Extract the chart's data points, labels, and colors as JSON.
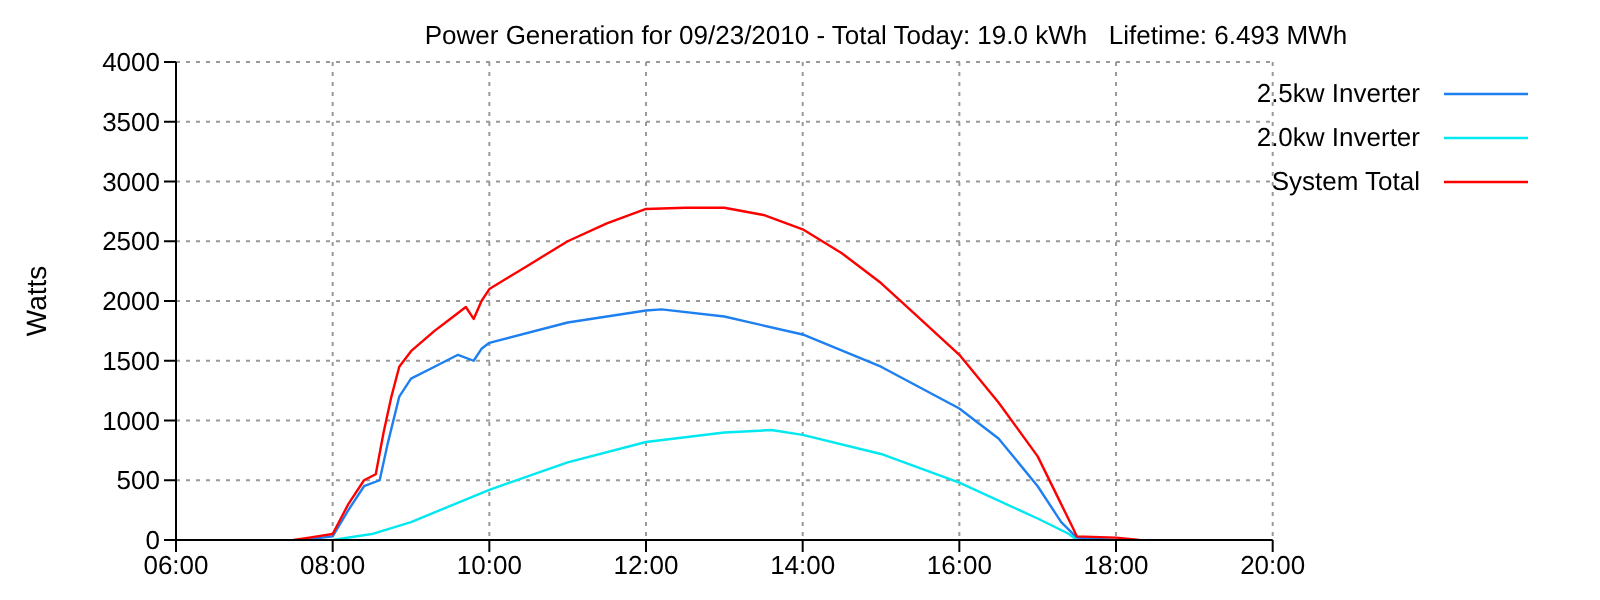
{
  "chart_data": {
    "type": "line",
    "title": "Power Generation for 09/23/2010 - Total Today: 19.0 kWh   Lifetime: 6.493 MWh",
    "ylabel": "Watts",
    "xlim": [
      6,
      20
    ],
    "xticks": [
      {
        "value": 6,
        "label": "06:00"
      },
      {
        "value": 8,
        "label": "08:00"
      },
      {
        "value": 10,
        "label": "10:00"
      },
      {
        "value": 12,
        "label": "12:00"
      },
      {
        "value": 14,
        "label": "14:00"
      },
      {
        "value": 16,
        "label": "16:00"
      },
      {
        "value": 18,
        "label": "18:00"
      },
      {
        "value": 20,
        "label": "20:00"
      }
    ],
    "ylim": [
      0,
      4000
    ],
    "yticks": [
      0,
      500,
      1000,
      1500,
      2000,
      2500,
      3000,
      3500,
      4000
    ],
    "grid": true,
    "legend": "top right",
    "marker": "none",
    "line_style": "solid",
    "series": [
      {
        "name": "2.5kw Inverter",
        "color": "#1e80f0",
        "x": [
          7.6,
          8.0,
          8.2,
          8.4,
          8.6,
          8.7,
          8.85,
          9.0,
          9.3,
          9.6,
          9.8,
          9.9,
          10,
          11,
          12,
          12.2,
          13,
          14,
          15,
          16,
          16.5,
          17,
          17.3,
          17.5,
          18
        ],
        "values": [
          0,
          30,
          250,
          450,
          500,
          800,
          1200,
          1350,
          1450,
          1550,
          1500,
          1600,
          1650,
          1820,
          1920,
          1930,
          1870,
          1720,
          1450,
          1100,
          850,
          450,
          150,
          20,
          0
        ]
      },
      {
        "name": "2.0kw Inverter",
        "color": "#00e8f0",
        "x": [
          8.0,
          8.5,
          9,
          10,
          11,
          12,
          13,
          13.6,
          14,
          15,
          16,
          17,
          17.4,
          17.5
        ],
        "values": [
          0,
          50,
          150,
          420,
          650,
          820,
          900,
          920,
          880,
          720,
          480,
          180,
          50,
          0
        ]
      },
      {
        "name": "System Total",
        "color": "#ff0000",
        "x": [
          7.5,
          7.7,
          8.0,
          8.2,
          8.4,
          8.55,
          8.65,
          8.75,
          8.85,
          9.0,
          9.3,
          9.5,
          9.7,
          9.8,
          9.9,
          10,
          10.5,
          11,
          11.5,
          12,
          12.5,
          13,
          13.5,
          14,
          14.5,
          15,
          15.5,
          16,
          16.5,
          17,
          17.3,
          17.45,
          17.5,
          18,
          18.3
        ],
        "values": [
          0,
          20,
          50,
          300,
          500,
          550,
          900,
          1200,
          1450,
          1580,
          1750,
          1850,
          1950,
          1850,
          2000,
          2100,
          2300,
          2500,
          2650,
          2770,
          2780,
          2780,
          2720,
          2600,
          2400,
          2150,
          1850,
          1550,
          1150,
          700,
          300,
          100,
          30,
          20,
          0
        ]
      }
    ]
  }
}
